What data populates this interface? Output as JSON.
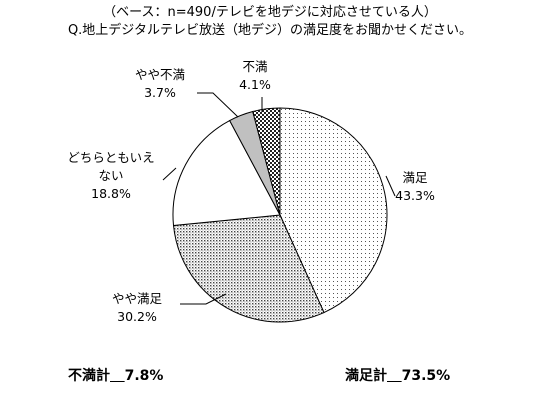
{
  "header": {
    "line1": "（ベース：n=490/テレビを地デジに対応させている人）",
    "line2": "Q.地上デジタルテレビ放送（地デジ）の満足度をお聞かせください。"
  },
  "chart_data": {
    "type": "pie",
    "title": "Q.地上デジタルテレビ放送（地デジ）の満足度をお聞かせください。",
    "subtitle": "（ベース：n=490/テレビを地デジに対応させている人）",
    "slices": [
      {
        "label": "満足",
        "value": 43.3,
        "value_label": "43.3%",
        "fill": "dots"
      },
      {
        "label": "やや満足",
        "value": 30.2,
        "value_label": "30.2%",
        "fill": "dense-dots"
      },
      {
        "label": "どちらともいえない",
        "label_lines": [
          "どちらともいえ",
          "ない"
        ],
        "value": 18.8,
        "value_label": "18.8%",
        "fill": "white"
      },
      {
        "label": "やや不満",
        "value": 3.7,
        "value_label": "3.7%",
        "fill": "gray"
      },
      {
        "label": "不満",
        "value": 4.1,
        "value_label": "4.1%",
        "fill": "checker"
      }
    ],
    "start": "12 o'clock, clockwise",
    "colors": {
      "outline": "#000000",
      "gray": "#c0c0c0",
      "dark": "#333333"
    }
  },
  "summary": {
    "dissatisfied_label": "不満計",
    "dissatisfied_value": "7.8%",
    "satisfied_label": "満足計",
    "satisfied_value": "73.5%"
  }
}
